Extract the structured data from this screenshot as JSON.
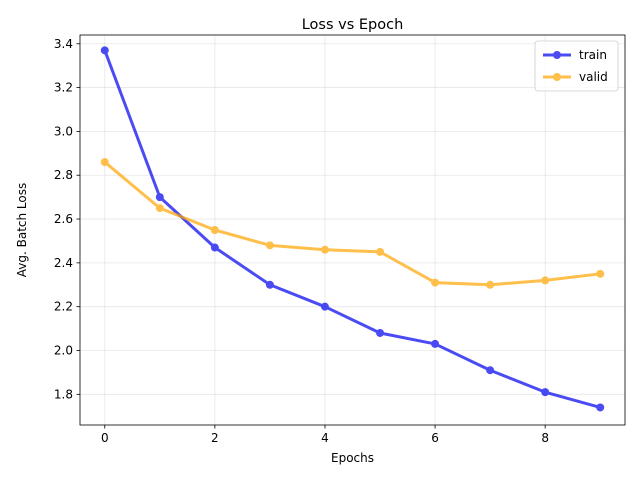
{
  "chart_data": {
    "type": "line",
    "title": "Loss vs Epoch",
    "xlabel": "Epochs",
    "ylabel": "Avg. Batch Loss",
    "x": [
      0,
      1,
      2,
      3,
      4,
      5,
      6,
      7,
      8,
      9
    ],
    "xlim": [
      -0.45,
      9.45
    ],
    "ylim": [
      1.66,
      3.44
    ],
    "xticks": [
      0,
      2,
      4,
      6,
      8
    ],
    "yticks": [
      1.8,
      2.0,
      2.2,
      2.4,
      2.6,
      2.8,
      3.0,
      3.2,
      3.4
    ],
    "xtick_labels": [
      "0",
      "2",
      "4",
      "6",
      "8"
    ],
    "ytick_labels": [
      "1.8",
      "2.0",
      "2.2",
      "2.4",
      "2.6",
      "2.8",
      "3.0",
      "3.2",
      "3.4"
    ],
    "grid": true,
    "legend_position": "top-right",
    "series": [
      {
        "name": "train",
        "color": "#0000ee",
        "values": [
          3.37,
          2.7,
          2.47,
          2.3,
          2.2,
          2.08,
          2.03,
          1.91,
          1.81,
          1.74
        ]
      },
      {
        "name": "valid",
        "color": "#ffa500",
        "values": [
          2.86,
          2.65,
          2.55,
          2.48,
          2.46,
          2.45,
          2.31,
          2.3,
          2.32,
          2.35
        ]
      }
    ]
  }
}
